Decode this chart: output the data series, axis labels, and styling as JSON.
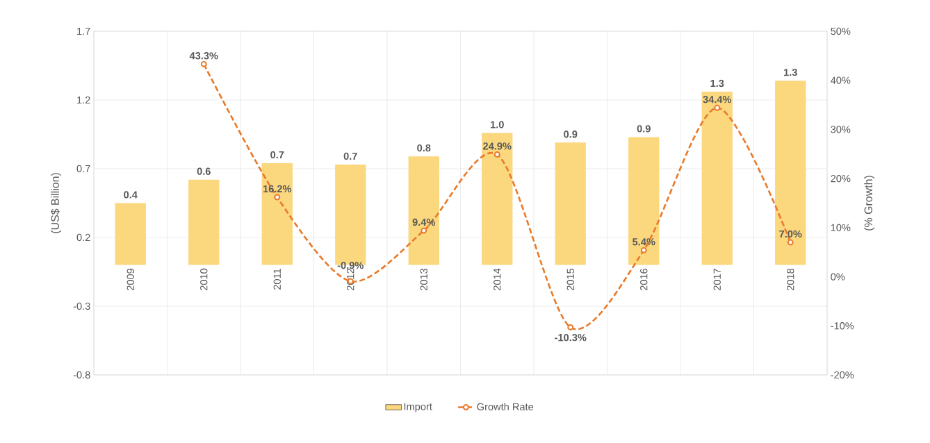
{
  "chart_data": {
    "type": "bar",
    "categories": [
      "2009",
      "2010",
      "2011",
      "2012",
      "2013",
      "2014",
      "2015",
      "2016",
      "2017",
      "2018"
    ],
    "series": [
      {
        "name": "Import",
        "color": "#fbd77e",
        "values": [
          0.45,
          0.62,
          0.74,
          0.73,
          0.79,
          0.96,
          0.89,
          0.93,
          1.26,
          1.34
        ],
        "value_labels": [
          "0.4",
          "0.6",
          "0.7",
          "0.7",
          "0.8",
          "1.0",
          "0.9",
          "0.9",
          "1.3",
          "1.3"
        ]
      },
      {
        "name": "Growth Rate",
        "type": "line",
        "axis": "y2",
        "color": "#e97b2c",
        "marker": "circle",
        "line_style": "dashed",
        "values": [
          null,
          43.3,
          16.2,
          -0.9,
          9.4,
          24.9,
          -10.3,
          5.4,
          34.4,
          7.0
        ],
        "value_labels": [
          null,
          "43.3%",
          "16.2%",
          "-0.9%",
          "9.4%",
          "24.9%",
          "-10.3%",
          "5.4%",
          "34.4%",
          "7.0%"
        ]
      }
    ],
    "ylabel": "(US$ Billion)",
    "y2label": "(% Growth)",
    "ylim": [
      -0.8,
      1.7
    ],
    "yticks": [
      -0.8,
      -0.3,
      0.2,
      0.7,
      1.2,
      1.7
    ],
    "y2lim": [
      -20,
      50
    ],
    "y2ticks": [
      {
        "value": -20,
        "label": "-20%"
      },
      {
        "value": -10,
        "label": "-10%"
      },
      {
        "value": 0,
        "label": "0%"
      },
      {
        "value": 10,
        "label": "10%"
      },
      {
        "value": 20,
        "label": "20%"
      },
      {
        "value": 30,
        "label": "30%"
      },
      {
        "value": 40,
        "label": "40%"
      },
      {
        "value": 50,
        "label": "50%"
      }
    ],
    "grid": true,
    "legend": "bottom"
  }
}
